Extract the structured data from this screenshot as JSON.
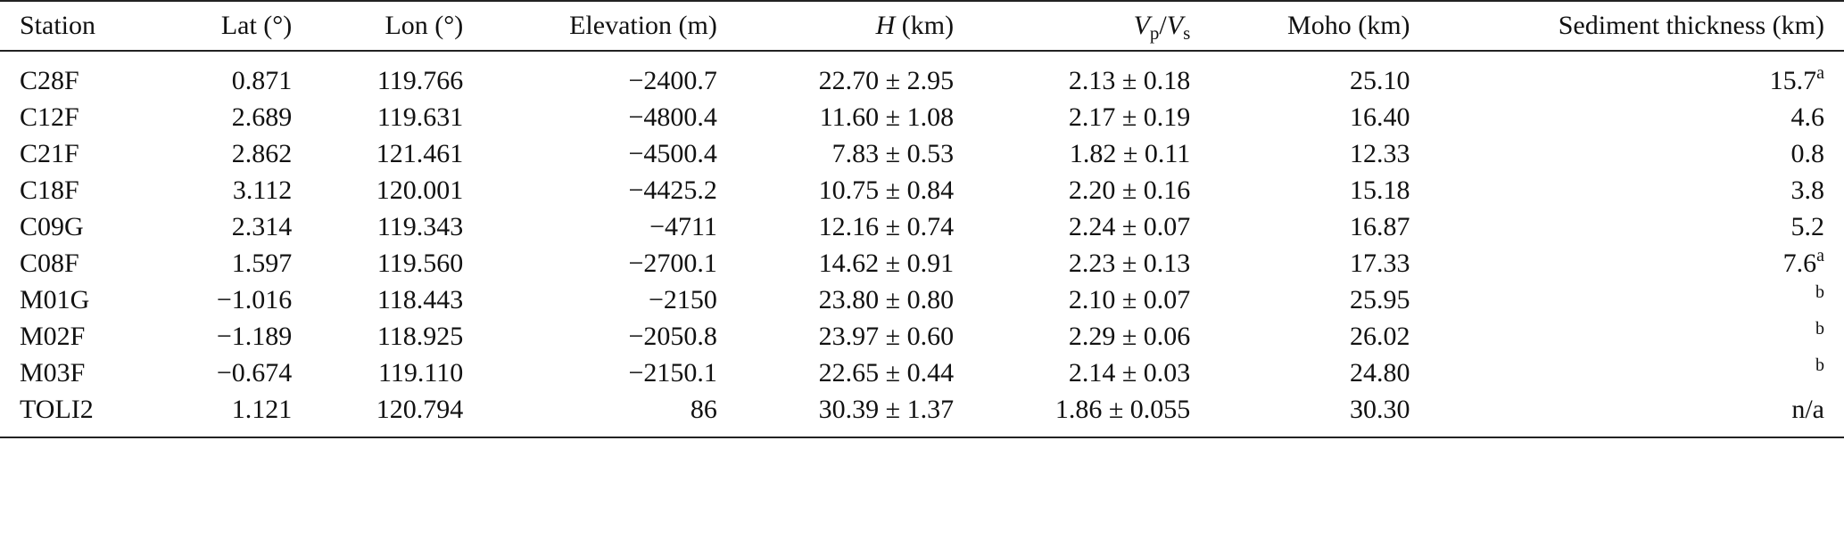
{
  "table": {
    "headers": {
      "station": "Station",
      "lat": "Lat (°)",
      "lon": "Lon (°)",
      "elevation": "Elevation (m)",
      "h_sym": "H",
      "h_unit": " (km)",
      "vpvs_vp": "V",
      "vpvs_p": "p",
      "vpvs_slash": "/",
      "vpvs_vs": "V",
      "vpvs_s": "s",
      "moho": "Moho (km)",
      "sediment": "Sediment thickness (km)"
    },
    "rows": [
      {
        "station": "C28F",
        "lat": "0.871",
        "lon": "119.766",
        "elevation": "−2400.7",
        "h": "22.70 ± 2.95",
        "vpvs": "2.13 ± 0.18",
        "moho": "25.10",
        "sed": "15.7",
        "sed_note": "a"
      },
      {
        "station": "C12F",
        "lat": "2.689",
        "lon": "119.631",
        "elevation": "−4800.4",
        "h": "11.60 ± 1.08",
        "vpvs": "2.17 ± 0.19",
        "moho": "16.40",
        "sed": "4.6",
        "sed_note": ""
      },
      {
        "station": "C21F",
        "lat": "2.862",
        "lon": "121.461",
        "elevation": "−4500.4",
        "h": "7.83 ± 0.53",
        "vpvs": "1.82 ± 0.11",
        "moho": "12.33",
        "sed": "0.8",
        "sed_note": ""
      },
      {
        "station": "C18F",
        "lat": "3.112",
        "lon": "120.001",
        "elevation": "−4425.2",
        "h": "10.75 ± 0.84",
        "vpvs": "2.20 ± 0.16",
        "moho": "15.18",
        "sed": "3.8",
        "sed_note": ""
      },
      {
        "station": "C09G",
        "lat": "2.314",
        "lon": "119.343",
        "elevation": "−4711",
        "h": "12.16 ± 0.74",
        "vpvs": "2.24 ± 0.07",
        "moho": "16.87",
        "sed": "5.2",
        "sed_note": ""
      },
      {
        "station": "C08F",
        "lat": "1.597",
        "lon": "119.560",
        "elevation": "−2700.1",
        "h": "14.62 ± 0.91",
        "vpvs": "2.23 ± 0.13",
        "moho": "17.33",
        "sed": "7.6",
        "sed_note": "a"
      },
      {
        "station": "M01G",
        "lat": "−1.016",
        "lon": "118.443",
        "elevation": "−2150",
        "h": "23.80 ± 0.80",
        "vpvs": "2.10 ± 0.07",
        "moho": "25.95",
        "sed": "",
        "sed_note": "b"
      },
      {
        "station": "M02F",
        "lat": "−1.189",
        "lon": "118.925",
        "elevation": "−2050.8",
        "h": "23.97 ± 0.60",
        "vpvs": "2.29 ± 0.06",
        "moho": "26.02",
        "sed": "",
        "sed_note": "b"
      },
      {
        "station": "M03F",
        "lat": "−0.674",
        "lon": "119.110",
        "elevation": "−2150.1",
        "h": "22.65 ± 0.44",
        "vpvs": "2.14 ± 0.03",
        "moho": "24.80",
        "sed": "",
        "sed_note": "b"
      },
      {
        "station": "TOLI2",
        "lat": "1.121",
        "lon": "120.794",
        "elevation": "86",
        "h": "30.39 ± 1.37",
        "vpvs": "1.86 ± 0.055",
        "moho": "30.30",
        "sed": "n/a",
        "sed_note": ""
      }
    ]
  }
}
